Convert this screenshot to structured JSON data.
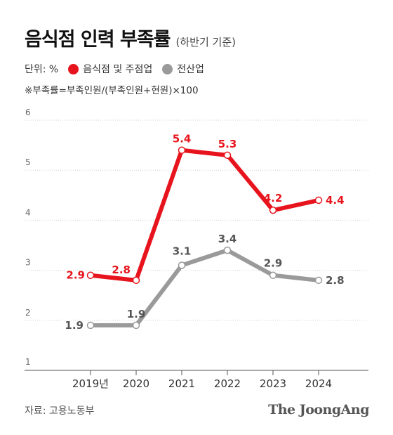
{
  "header": {
    "title": "음식점 인력 부족률",
    "subtitle": "(하반기 기준)"
  },
  "legend": {
    "unit_label": "단위: %",
    "items": [
      {
        "label": "음식점 및 주점업",
        "color": "#e8141d"
      },
      {
        "label": "전산업",
        "color": "#9a9a9a"
      }
    ]
  },
  "note": "※부족률=부족인원/(부족인원+현원)×100",
  "footer": {
    "source": "자료: 고용노동부",
    "logo": "The JoongAng"
  },
  "chart_data": {
    "type": "line",
    "x": [
      "2019년",
      "2020",
      "2021",
      "2022",
      "2023",
      "2024"
    ],
    "ylim": [
      1,
      6
    ],
    "yticks": [
      1,
      2,
      3,
      4,
      5,
      6
    ],
    "grid": true,
    "series": [
      {
        "name": "음식점 및 주점업",
        "color": "#e8141d",
        "label_color": "#e8141d",
        "values": [
          2.9,
          2.8,
          5.4,
          5.3,
          4.2,
          4.4
        ],
        "labels": [
          "2.9",
          "2.8",
          "5.4",
          "5.3",
          "4.2",
          "4.4"
        ]
      },
      {
        "name": "전산업",
        "color": "#9a9a9a",
        "label_color": "#555555",
        "values": [
          1.9,
          1.9,
          3.1,
          3.4,
          2.9,
          2.8
        ],
        "labels": [
          "1.9",
          "1.9",
          "3.1",
          "3.4",
          "2.9",
          "2.8"
        ]
      }
    ]
  }
}
